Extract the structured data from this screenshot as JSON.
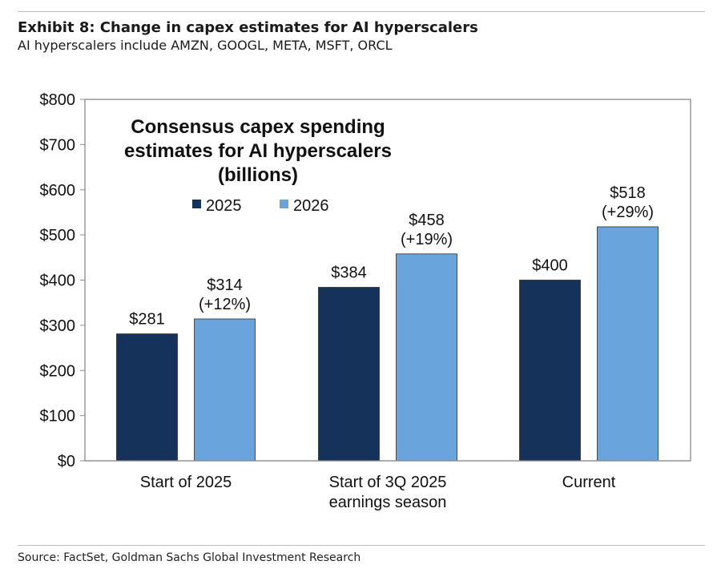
{
  "header": {
    "title": "Exhibit 8: Change in capex estimates for AI hyperscalers",
    "subtitle": "AI hyperscalers include AMZN, GOOGL, META, MSFT, ORCL"
  },
  "footer": {
    "source": "Source: FactSet, Goldman Sachs Global Investment Research"
  },
  "colors": {
    "series_2025": "#14325a",
    "series_2026": "#69a5dc",
    "plot_border": "#7f7f7f",
    "axis": "#8c8c8c",
    "text": "#111111"
  },
  "chart_data": {
    "type": "bar",
    "title": "Consensus capex spending estimates for AI hyperscalers (billions)",
    "title_lines": [
      "Consensus capex spending",
      "estimates for AI hyperscalers",
      "(billions)"
    ],
    "categories": [
      "Start of 2025",
      "Start of 3Q 2025 earnings season",
      "Current"
    ],
    "category_lines": [
      [
        "Start of 2025"
      ],
      [
        "Start of 3Q 2025",
        "earnings season"
      ],
      [
        "Current"
      ]
    ],
    "series": [
      {
        "name": "2025",
        "values": [
          281,
          384,
          400
        ],
        "labels": [
          [
            "$281"
          ],
          [
            "$384"
          ],
          [
            "$400"
          ]
        ]
      },
      {
        "name": "2026",
        "values": [
          314,
          458,
          518
        ],
        "labels": [
          [
            "$314",
            "(+12%)"
          ],
          [
            "$458",
            "(+19%)"
          ],
          [
            "$518",
            "(+29%)"
          ]
        ]
      }
    ],
    "ylim": [
      0,
      800
    ],
    "yticks": [
      0,
      100,
      200,
      300,
      400,
      500,
      600,
      700,
      800
    ],
    "ytick_labels": [
      "$0",
      "$100",
      "$200",
      "$300",
      "$400",
      "$500",
      "$600",
      "$700",
      "$800"
    ],
    "xlabel": "",
    "ylabel": "",
    "grid": false,
    "legend_position": "top-left inside plot"
  }
}
